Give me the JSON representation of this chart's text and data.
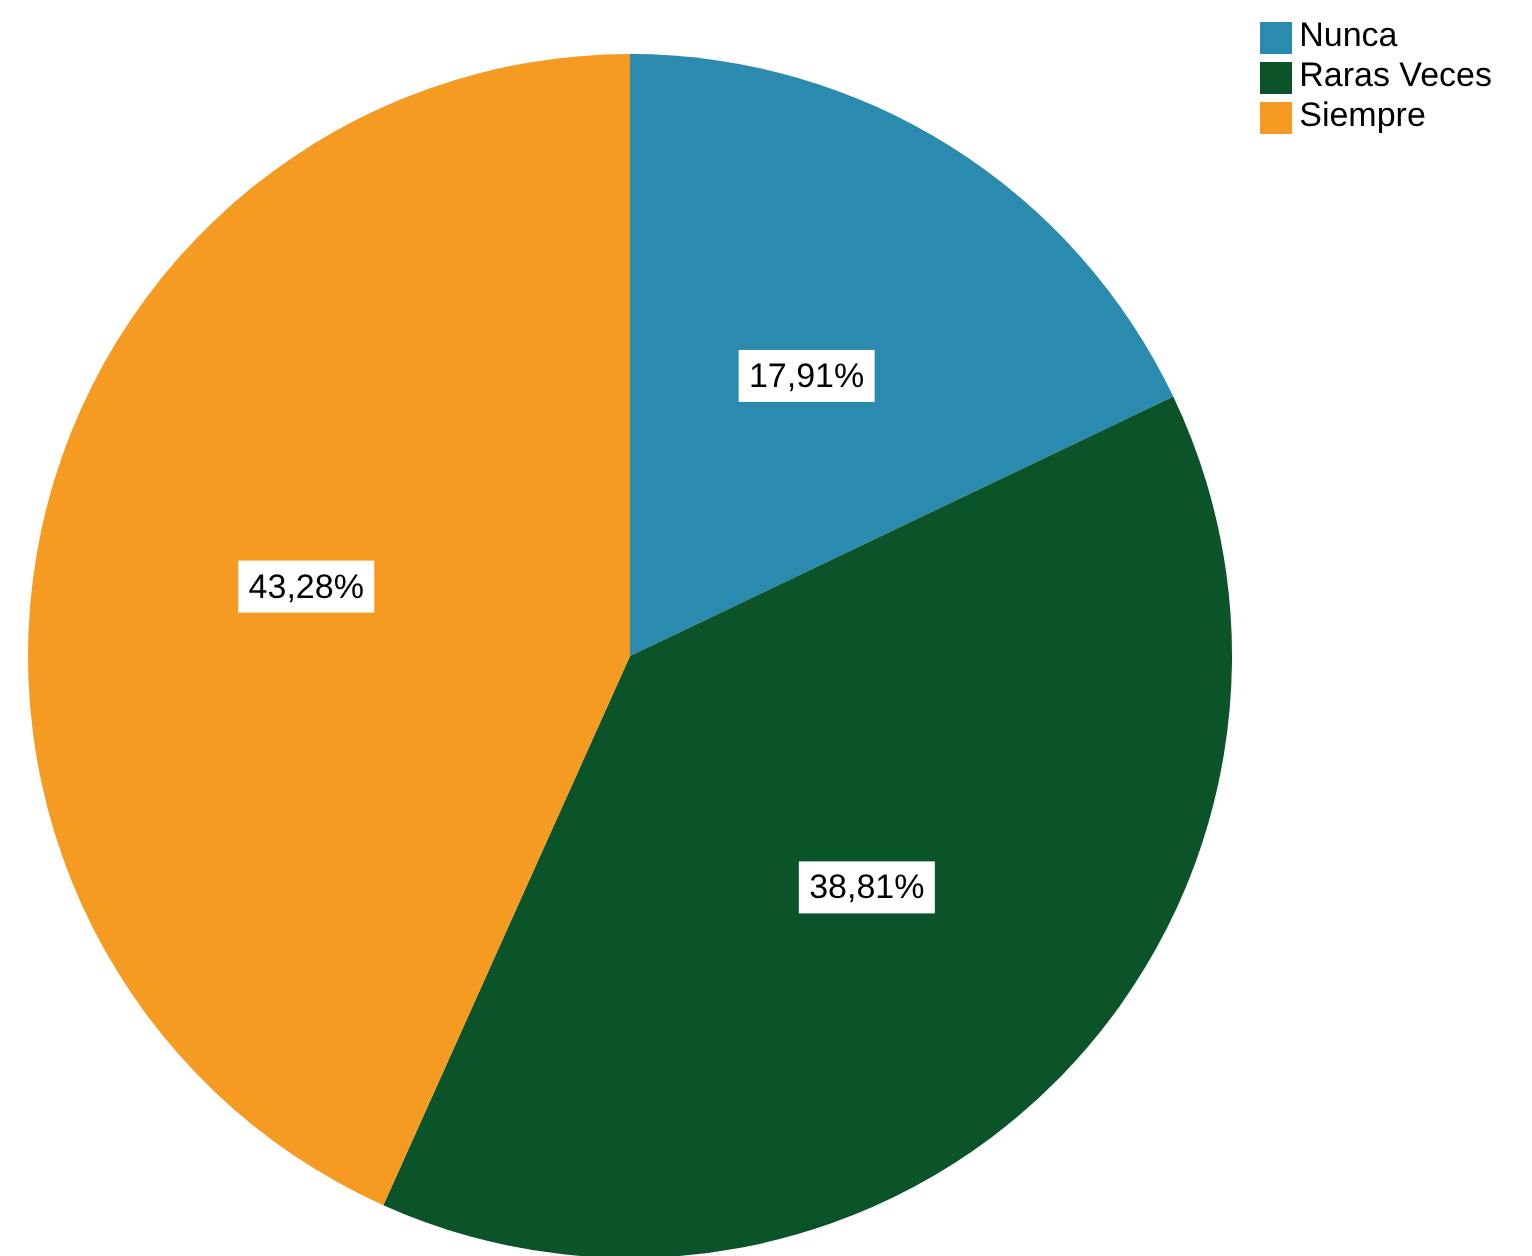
{
  "chart_data": {
    "type": "pie",
    "categories": [
      "Nunca",
      "Raras Veces",
      "Siempre"
    ],
    "values": [
      17.91,
      38.81,
      43.28
    ],
    "colors": [
      "#2a8bae",
      "#0b5329",
      "#f59b21"
    ],
    "value_labels": [
      "17,91%",
      "38,81%",
      "43,28%"
    ],
    "legend": "top right"
  }
}
